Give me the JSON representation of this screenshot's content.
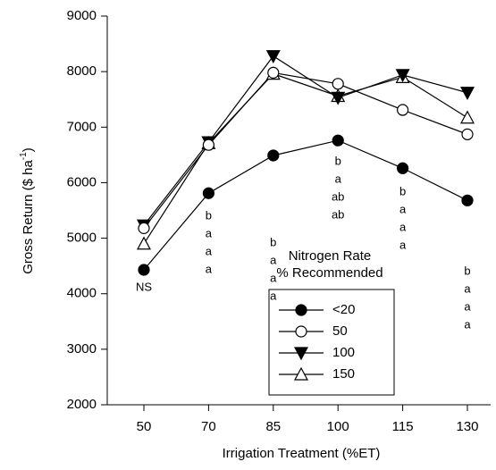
{
  "chart_data": {
    "type": "line",
    "x_label": "Irrigation Treatment (%ET)",
    "y_label": [
      "Gross Return ($ ha",
      "-1",
      ")"
    ],
    "categories": [
      "50",
      "70",
      "85",
      "100",
      "115",
      "130"
    ],
    "series": [
      {
        "name": "<20",
        "color": "#000000",
        "marker": "circle",
        "filled": true,
        "values": [
          4430,
          5810,
          6490,
          6760,
          6260,
          5680
        ]
      },
      {
        "name": "50",
        "color": "#000000",
        "marker": "circle",
        "filled": false,
        "values": [
          5180,
          6680,
          7980,
          7780,
          7310,
          6870
        ]
      },
      {
        "name": "100",
        "color": "#000000",
        "marker": "triangle-down",
        "filled": true,
        "values": [
          5230,
          6730,
          8280,
          7530,
          7940,
          7620
        ]
      },
      {
        "name": "150",
        "color": "#000000",
        "marker": "triangle-up",
        "filled": false,
        "values": [
          4900,
          6710,
          7960,
          7560,
          7900,
          7170
        ]
      }
    ],
    "annotations": [
      [
        "NS"
      ],
      [
        "b",
        "a",
        "a",
        "a"
      ],
      [
        "b",
        "a",
        "a",
        "a"
      ],
      [
        "b",
        "a",
        "ab",
        "ab"
      ],
      [
        "b",
        "a",
        "a",
        "a"
      ],
      [
        "b",
        "a",
        "a",
        "a"
      ]
    ],
    "legend_title": [
      "Nitrogen Rate",
      "% Recommended"
    ],
    "ylim": [
      2000,
      9000
    ],
    "yticks": [
      2000,
      3000,
      4000,
      5000,
      6000,
      7000,
      8000,
      9000
    ]
  }
}
